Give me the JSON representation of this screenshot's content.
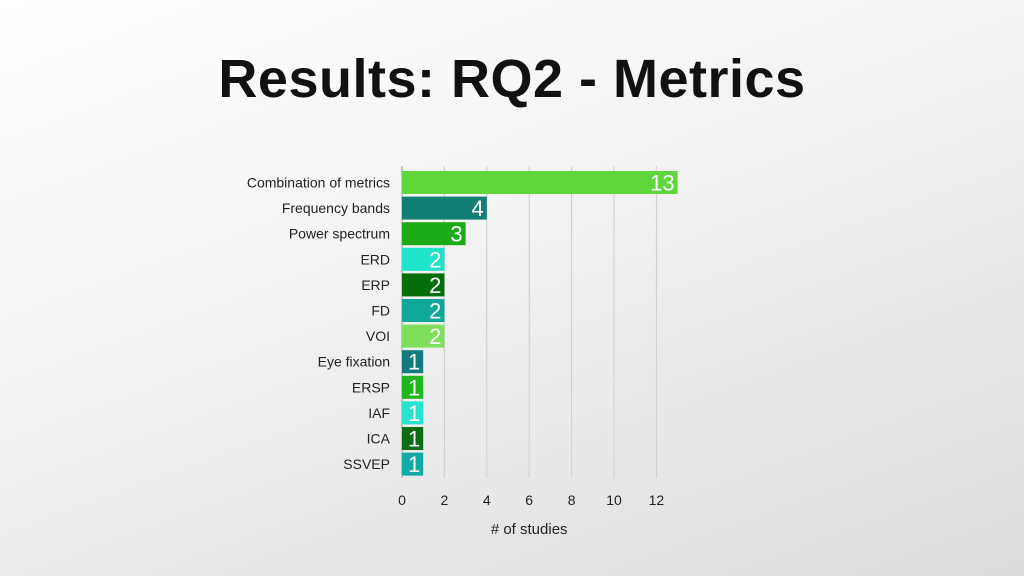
{
  "slide": {
    "title": "Results: RQ2 - Metrics"
  },
  "chart_data": {
    "type": "bar",
    "orientation": "horizontal",
    "categories": [
      "Combination of metrics",
      "Frequency bands",
      "Power spectrum",
      "ERD",
      "ERP",
      "FD",
      "VOI",
      "Eye fixation",
      "ERSP",
      "IAF",
      "ICA",
      "SSVEP"
    ],
    "values": [
      13,
      4,
      3,
      2,
      2,
      2,
      2,
      1,
      1,
      1,
      1,
      1
    ],
    "colors": [
      "#5fd63c",
      "#117f74",
      "#1cab17",
      "#1fe3cb",
      "#056d09",
      "#0ea79a",
      "#7ee05a",
      "#137b80",
      "#1db61e",
      "#27e2cd",
      "#0b6c14",
      "#13a9a4"
    ],
    "xlabel": "# of studies",
    "ylabel": "",
    "xticks": [
      0,
      2,
      4,
      6,
      8,
      10,
      12
    ],
    "xlim": [
      0,
      13
    ],
    "grid": "vertical",
    "legend": "none"
  }
}
